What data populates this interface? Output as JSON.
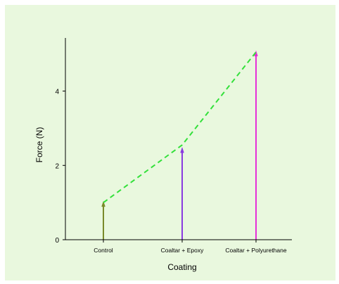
{
  "chart_data": {
    "type": "bar",
    "title": "",
    "xlabel": "Coating",
    "ylabel": "Force (N)",
    "categories": [
      "Control",
      "Coaltar + Epoxy",
      "Coaltar + Polyurethane"
    ],
    "values": [
      1.0,
      2.45,
      5.05
    ],
    "ylim": [
      0,
      5.6
    ],
    "yticks": [
      0,
      2,
      4
    ],
    "bar_style": "thin vertical stems",
    "trend_line": {
      "style": "dashed",
      "values": [
        1.0,
        2.55,
        5.05
      ]
    },
    "grid": false,
    "colors": {
      "background": "#e9f8de",
      "bars": [
        "#7a8a2a",
        "#8a3adf",
        "#e52fd8"
      ],
      "trend": "#33e03a",
      "axis": "#000000"
    }
  }
}
